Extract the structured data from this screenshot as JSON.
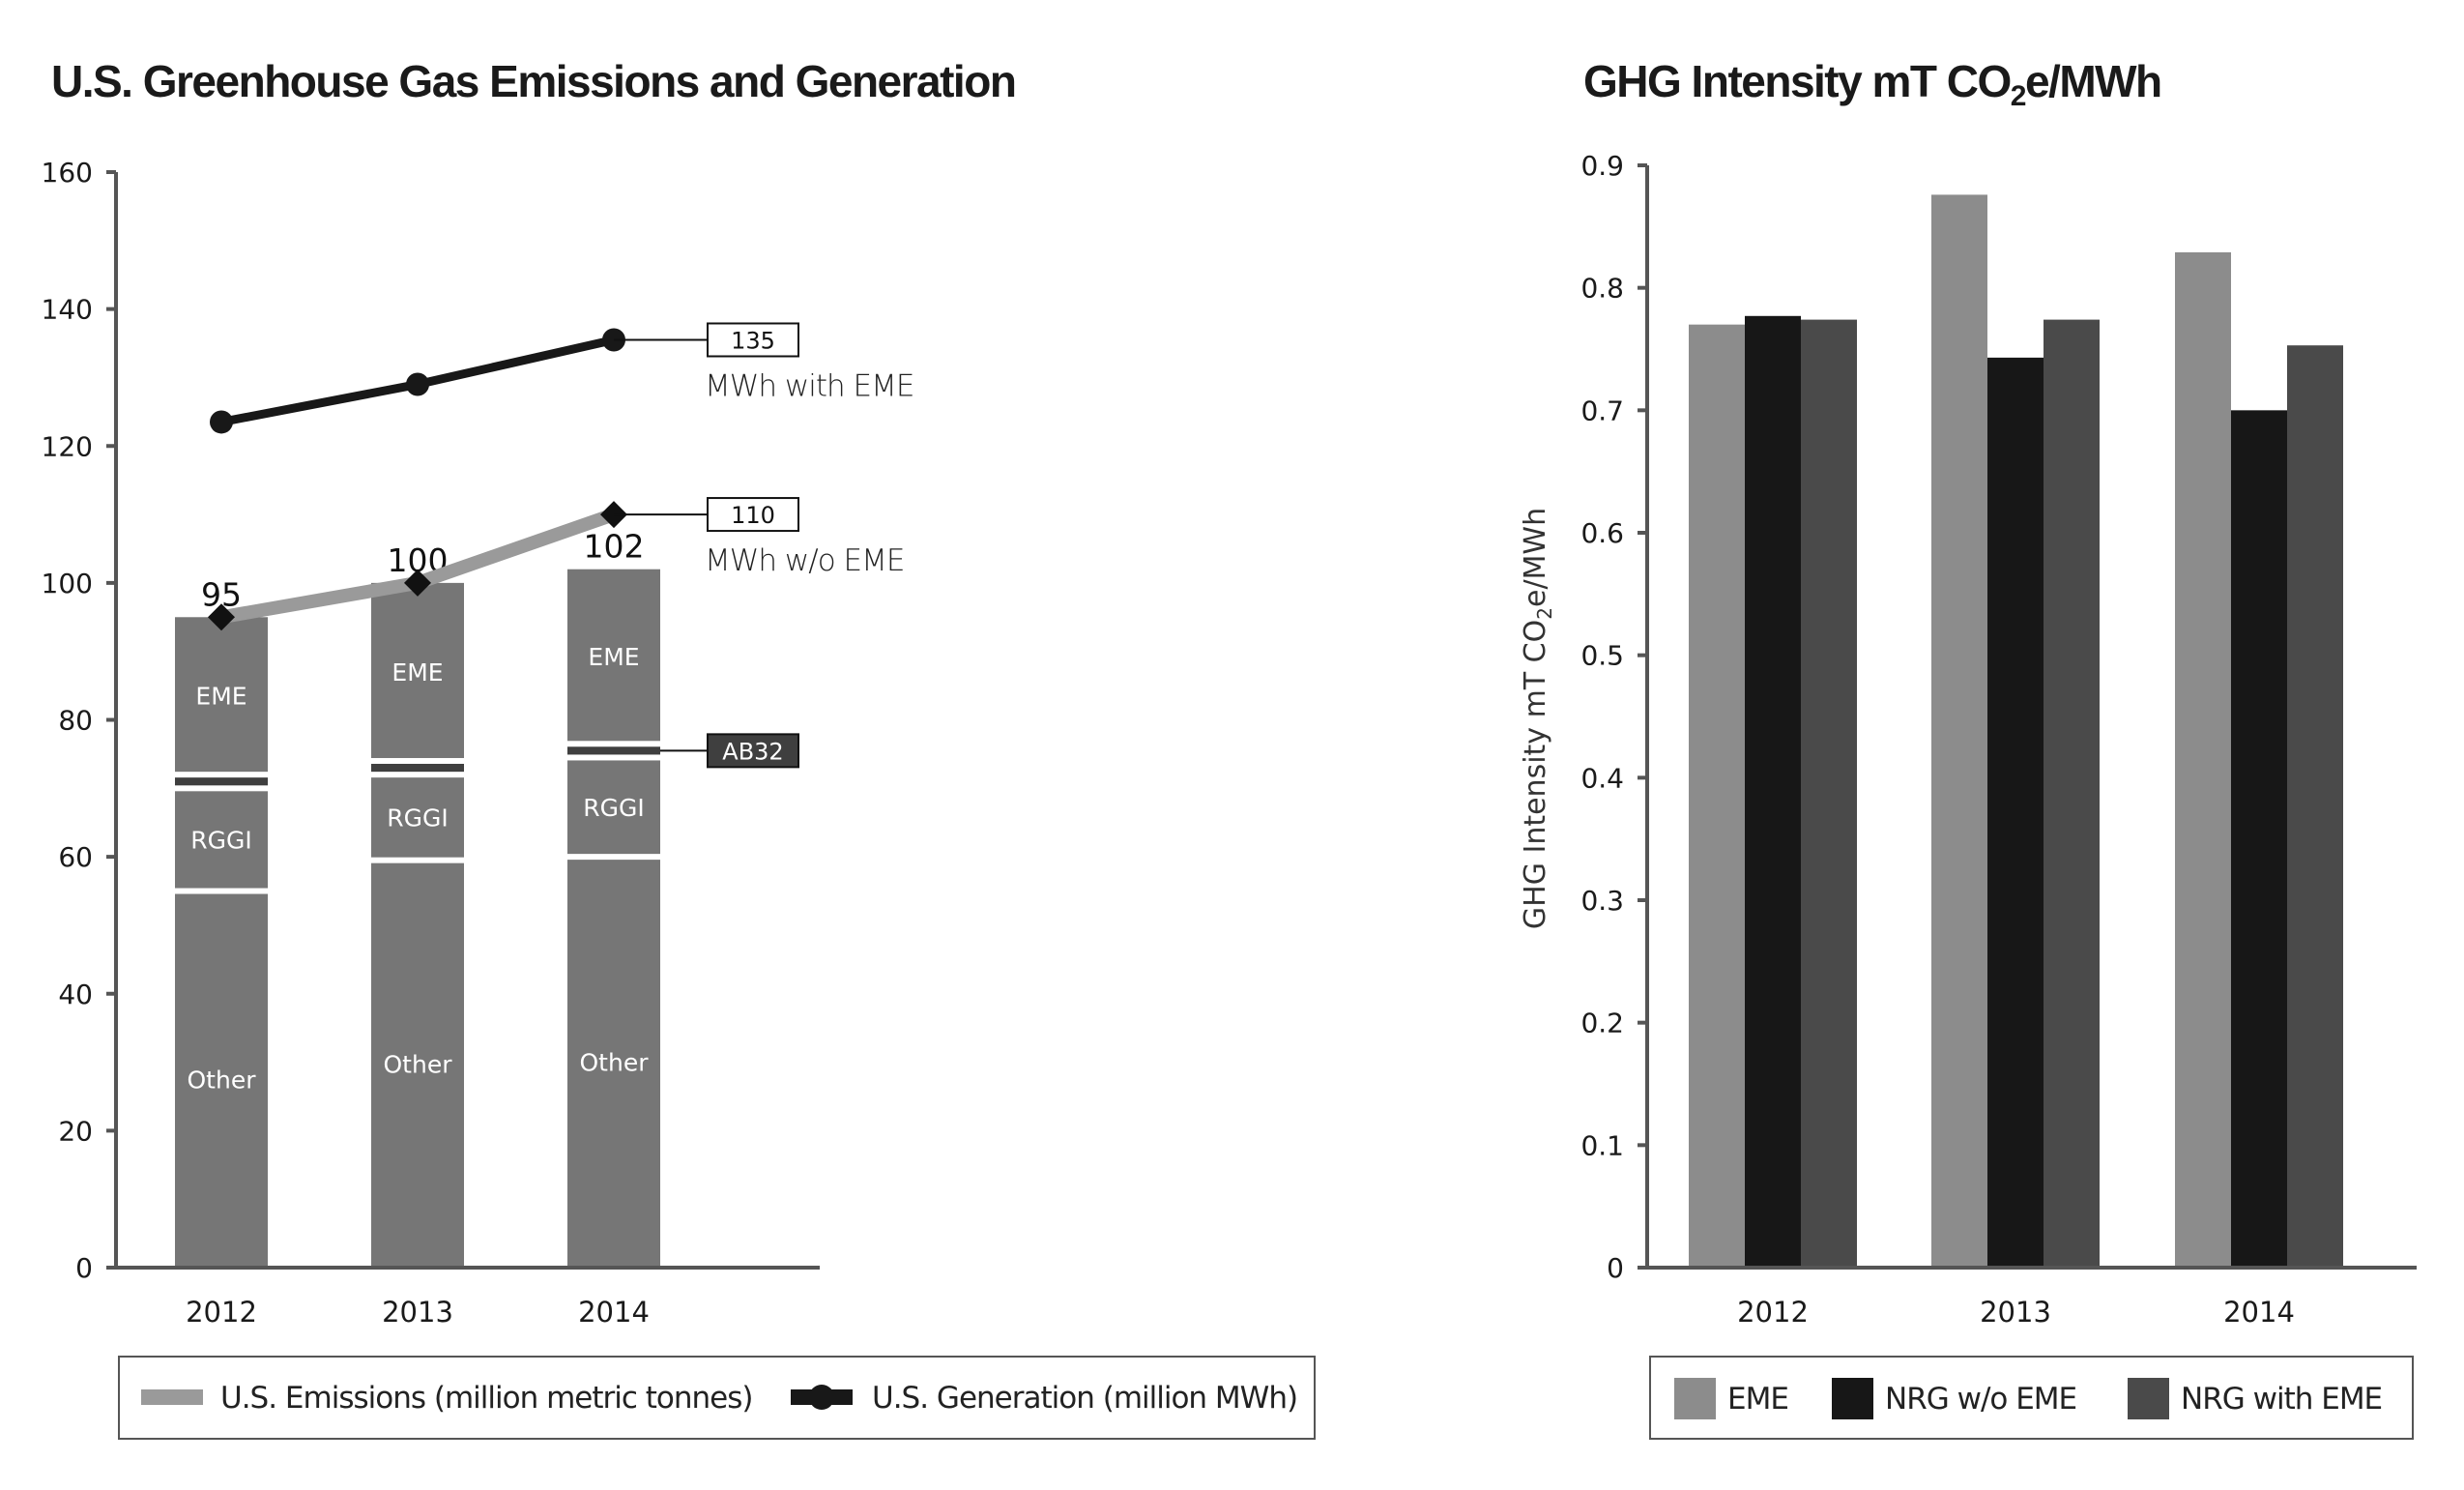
{
  "colors": {
    "axis": "#555555",
    "stack_segment": "#767676",
    "ab32_segment": "#3f3f3f",
    "emissions_line": "#9a9a9a",
    "generation_line": "#181818",
    "eme_bar": "#8c8c8c",
    "nrg_wo_eme_bar": "#171717",
    "nrg_with_eme_bar": "#4a4a4a"
  },
  "chart_data": [
    {
      "type": "bar",
      "stacked": true,
      "title": "U.S. Greenhouse Gas Emissions and Generation",
      "xlabel": "",
      "ylabel": "",
      "ylim": [
        0,
        160
      ],
      "yticks": [
        "0",
        "20",
        "40",
        "60",
        "80",
        "100",
        "120",
        "140",
        "160"
      ],
      "ytick_values": [
        0,
        20,
        40,
        60,
        80,
        100,
        120,
        140,
        160
      ],
      "grid": false,
      "categories": [
        "2012",
        "2013",
        "2014"
      ],
      "series": [
        {
          "name": "Other",
          "values": [
            55,
            59.5,
            60
          ]
        },
        {
          "name": "RGGI",
          "values": [
            15,
            12.5,
            14.5
          ]
        },
        {
          "name": "AB32",
          "values": [
            2,
            2,
            2
          ]
        },
        {
          "name": "EME",
          "values": [
            23,
            26,
            25.5
          ]
        }
      ],
      "segment_labels": [
        "Other",
        "RGGI",
        "",
        "EME"
      ],
      "totals": [
        95,
        100,
        102
      ],
      "total_labels": [
        "95",
        "100",
        "102"
      ],
      "lines": [
        {
          "name": "U.S. Emissions (million metric tonnes)",
          "marker": "diamond",
          "values": [
            95,
            100,
            110
          ]
        },
        {
          "name": "U.S. Generation (million MWh)",
          "marker": "circle",
          "values": [
            123.5,
            129,
            135.5
          ]
        }
      ],
      "annotations": {
        "generation_end_value": "135",
        "generation_end_caption": "MWh with EME",
        "emissions_end_value": "110",
        "emissions_end_caption": "MWh w/o EME",
        "ab32_label": "AB32"
      },
      "legend": {
        "position": "bottom",
        "entries": [
          "U.S. Emissions (million metric tonnes)",
          "U.S. Generation (million MWh)"
        ]
      }
    },
    {
      "type": "bar",
      "stacked": false,
      "title_parts": {
        "before": "GHG Intensity mT CO",
        "sub": "2",
        "after": "e/MWh"
      },
      "ylabel_parts": {
        "before": "GHG Intensity  mT CO",
        "sub": "2",
        "after": "e/MWh"
      },
      "xlabel": "",
      "ylim": [
        0,
        0.9
      ],
      "yticks": [
        "0",
        "0.1",
        "0.2",
        "0.3",
        "0.4",
        "0.5",
        "0.6",
        "0.7",
        "0.8",
        "0.9"
      ],
      "ytick_values": [
        0,
        0.1,
        0.2,
        0.3,
        0.4,
        0.5,
        0.6,
        0.7,
        0.8,
        0.9
      ],
      "grid": false,
      "categories": [
        "2012",
        "2013",
        "2014"
      ],
      "series": [
        {
          "name": "EME",
          "values": [
            0.77,
            0.876,
            0.829
          ]
        },
        {
          "name": "NRG w/o EME",
          "values": [
            0.777,
            0.743,
            0.7
          ]
        },
        {
          "name": "NRG with EME",
          "values": [
            0.774,
            0.774,
            0.753
          ]
        }
      ],
      "legend": {
        "position": "bottom",
        "entries": [
          "EME",
          "NRG w/o EME",
          "NRG with EME"
        ]
      }
    }
  ]
}
